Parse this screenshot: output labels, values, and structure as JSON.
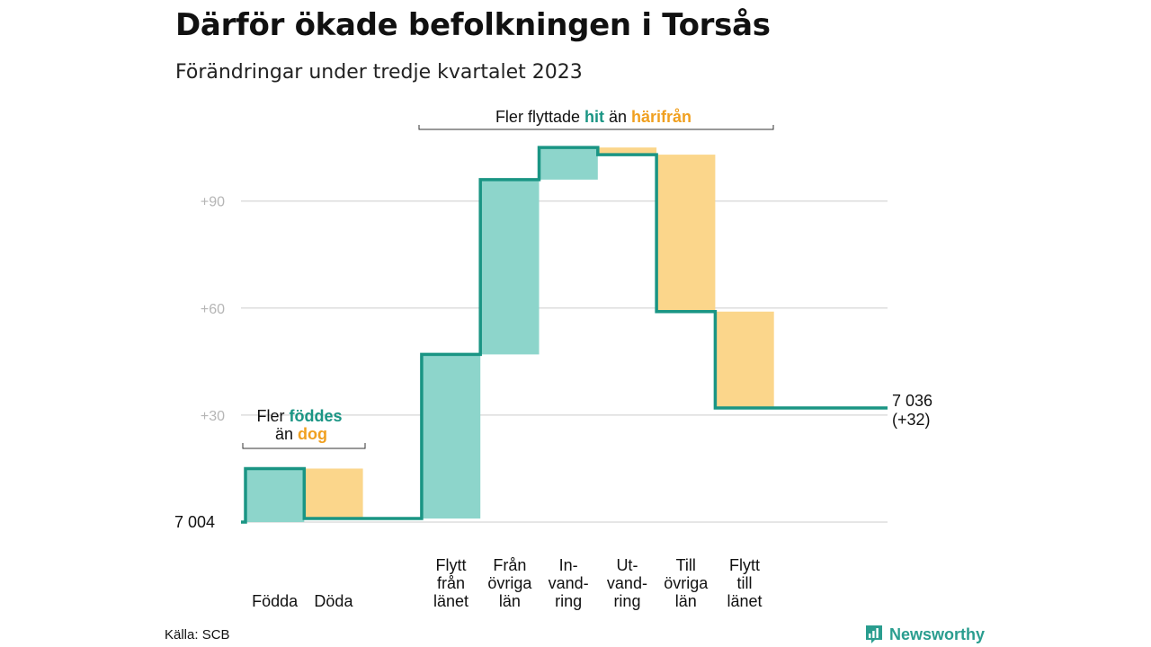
{
  "title": "Därför ökade befolkningen i Torsås",
  "subtitle": "Förändringar under tredje kvartalet 2023",
  "source": "Källa: SCB",
  "brand": "Newsworthy",
  "colors": {
    "positive": "#8dd5cb",
    "negative": "#fbd68b",
    "line": "#1a9584",
    "teal_text": "#1a9584",
    "orange_text": "#f0a020",
    "grid": "#dddddd",
    "tick": "#b5b5b5"
  },
  "annotations": {
    "births": {
      "line1_prefix": "Fler ",
      "line1_highlight": "föddes",
      "line2_prefix": "än ",
      "line2_highlight": "dog"
    },
    "migration": {
      "prefix": "Fler flyttade ",
      "highlight1": "hit",
      "middle": " än ",
      "highlight2": "härifrån"
    }
  },
  "chart_data": {
    "type": "waterfall",
    "title": "Därför ökade befolkningen i Torsås",
    "subtitle": "Förändringar under tredje kvartalet 2023",
    "start_label": "7 004",
    "end_label": [
      "7 036",
      "(+32)"
    ],
    "ylim": [
      0,
      110
    ],
    "yticks": [
      {
        "value": 30,
        "label": "+30"
      },
      {
        "value": 60,
        "label": "+60"
      },
      {
        "value": 90,
        "label": "+90"
      }
    ],
    "grid": true,
    "steps": [
      {
        "label": [
          "Födda"
        ],
        "value": 15
      },
      {
        "label": [
          "Döda"
        ],
        "value": -14
      },
      {
        "label": [],
        "value": 0
      },
      {
        "label": [
          "Flytt",
          "från",
          "länet"
        ],
        "value": 46
      },
      {
        "label": [
          "Från",
          "övriga",
          "län"
        ],
        "value": 49
      },
      {
        "label": [
          "In-",
          "vand-",
          "ring"
        ],
        "value": 9
      },
      {
        "label": [
          "Ut-",
          "vand-",
          "ring"
        ],
        "value": -2
      },
      {
        "label": [
          "Till",
          "övriga",
          "län"
        ],
        "value": -44
      },
      {
        "label": [
          "Flytt",
          "till",
          "länet"
        ],
        "value": -27
      }
    ],
    "final_change": 32
  }
}
